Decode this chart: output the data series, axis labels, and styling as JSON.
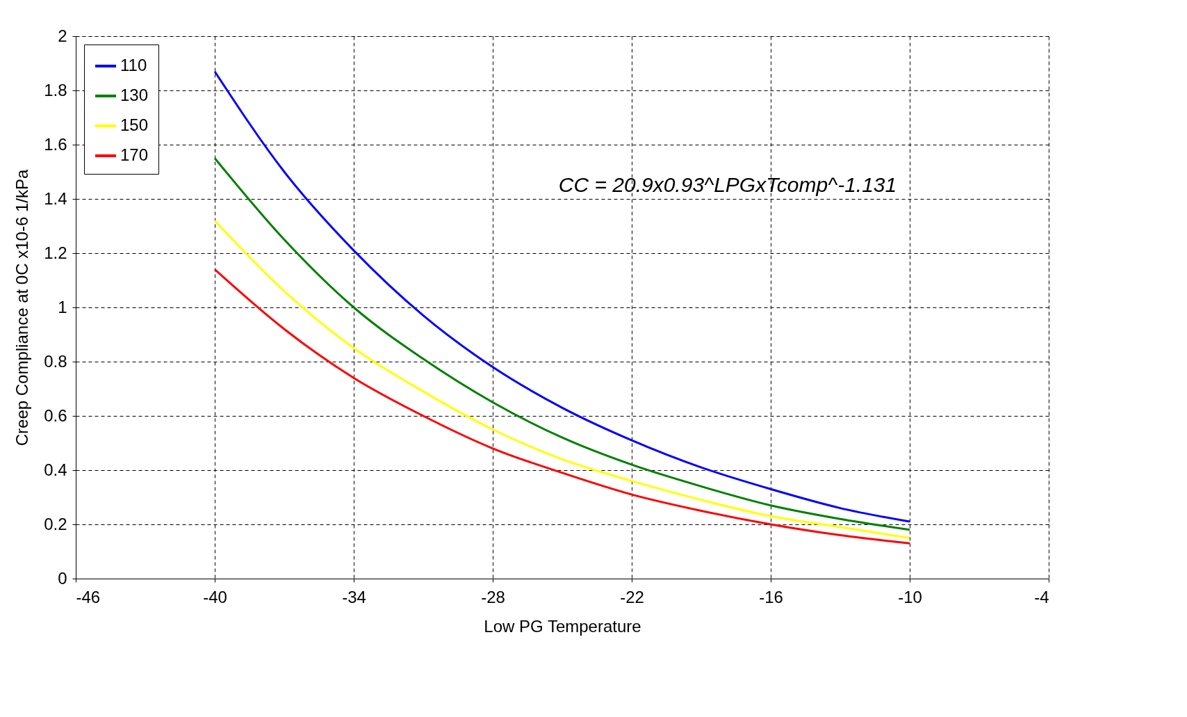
{
  "chart_data": {
    "type": "line",
    "xlabel": "Low PG Temperature",
    "ylabel": "Creep Compliance at 0C x10-6 1/kPa",
    "x": [
      -40,
      -37,
      -34,
      -31,
      -28,
      -25,
      -22,
      -19,
      -16,
      -13,
      -10
    ],
    "series": [
      {
        "name": "110",
        "color": "#0000ff",
        "values": [
          1.87,
          1.5,
          1.21,
          0.97,
          0.78,
          0.63,
          0.51,
          0.41,
          0.33,
          0.26,
          0.21
        ]
      },
      {
        "name": "130",
        "color": "#008000",
        "values": [
          1.55,
          1.25,
          1.0,
          0.81,
          0.65,
          0.52,
          0.42,
          0.34,
          0.27,
          0.22,
          0.18
        ]
      },
      {
        "name": "150",
        "color": "#ffff00",
        "values": [
          1.32,
          1.06,
          0.85,
          0.69,
          0.55,
          0.44,
          0.36,
          0.29,
          0.23,
          0.19,
          0.15
        ]
      },
      {
        "name": "170",
        "color": "#ff0000",
        "values": [
          1.14,
          0.92,
          0.74,
          0.6,
          0.48,
          0.39,
          0.31,
          0.25,
          0.2,
          0.16,
          0.13
        ]
      }
    ],
    "xlim": [
      -46,
      -4
    ],
    "xticks": [
      -46,
      -40,
      -34,
      -28,
      -22,
      -16,
      -10,
      -4
    ],
    "ylim": [
      0,
      2
    ],
    "yticks": [
      0,
      0.2,
      0.4,
      0.6,
      0.8,
      1,
      1.2,
      1.4,
      1.6,
      1.8,
      2
    ],
    "grid": true,
    "legend": "top left",
    "marker": "none",
    "line_style": "solid",
    "annotations": [
      "CC = 20.9x0.93^LPGxTcomp^-1.131"
    ]
  }
}
